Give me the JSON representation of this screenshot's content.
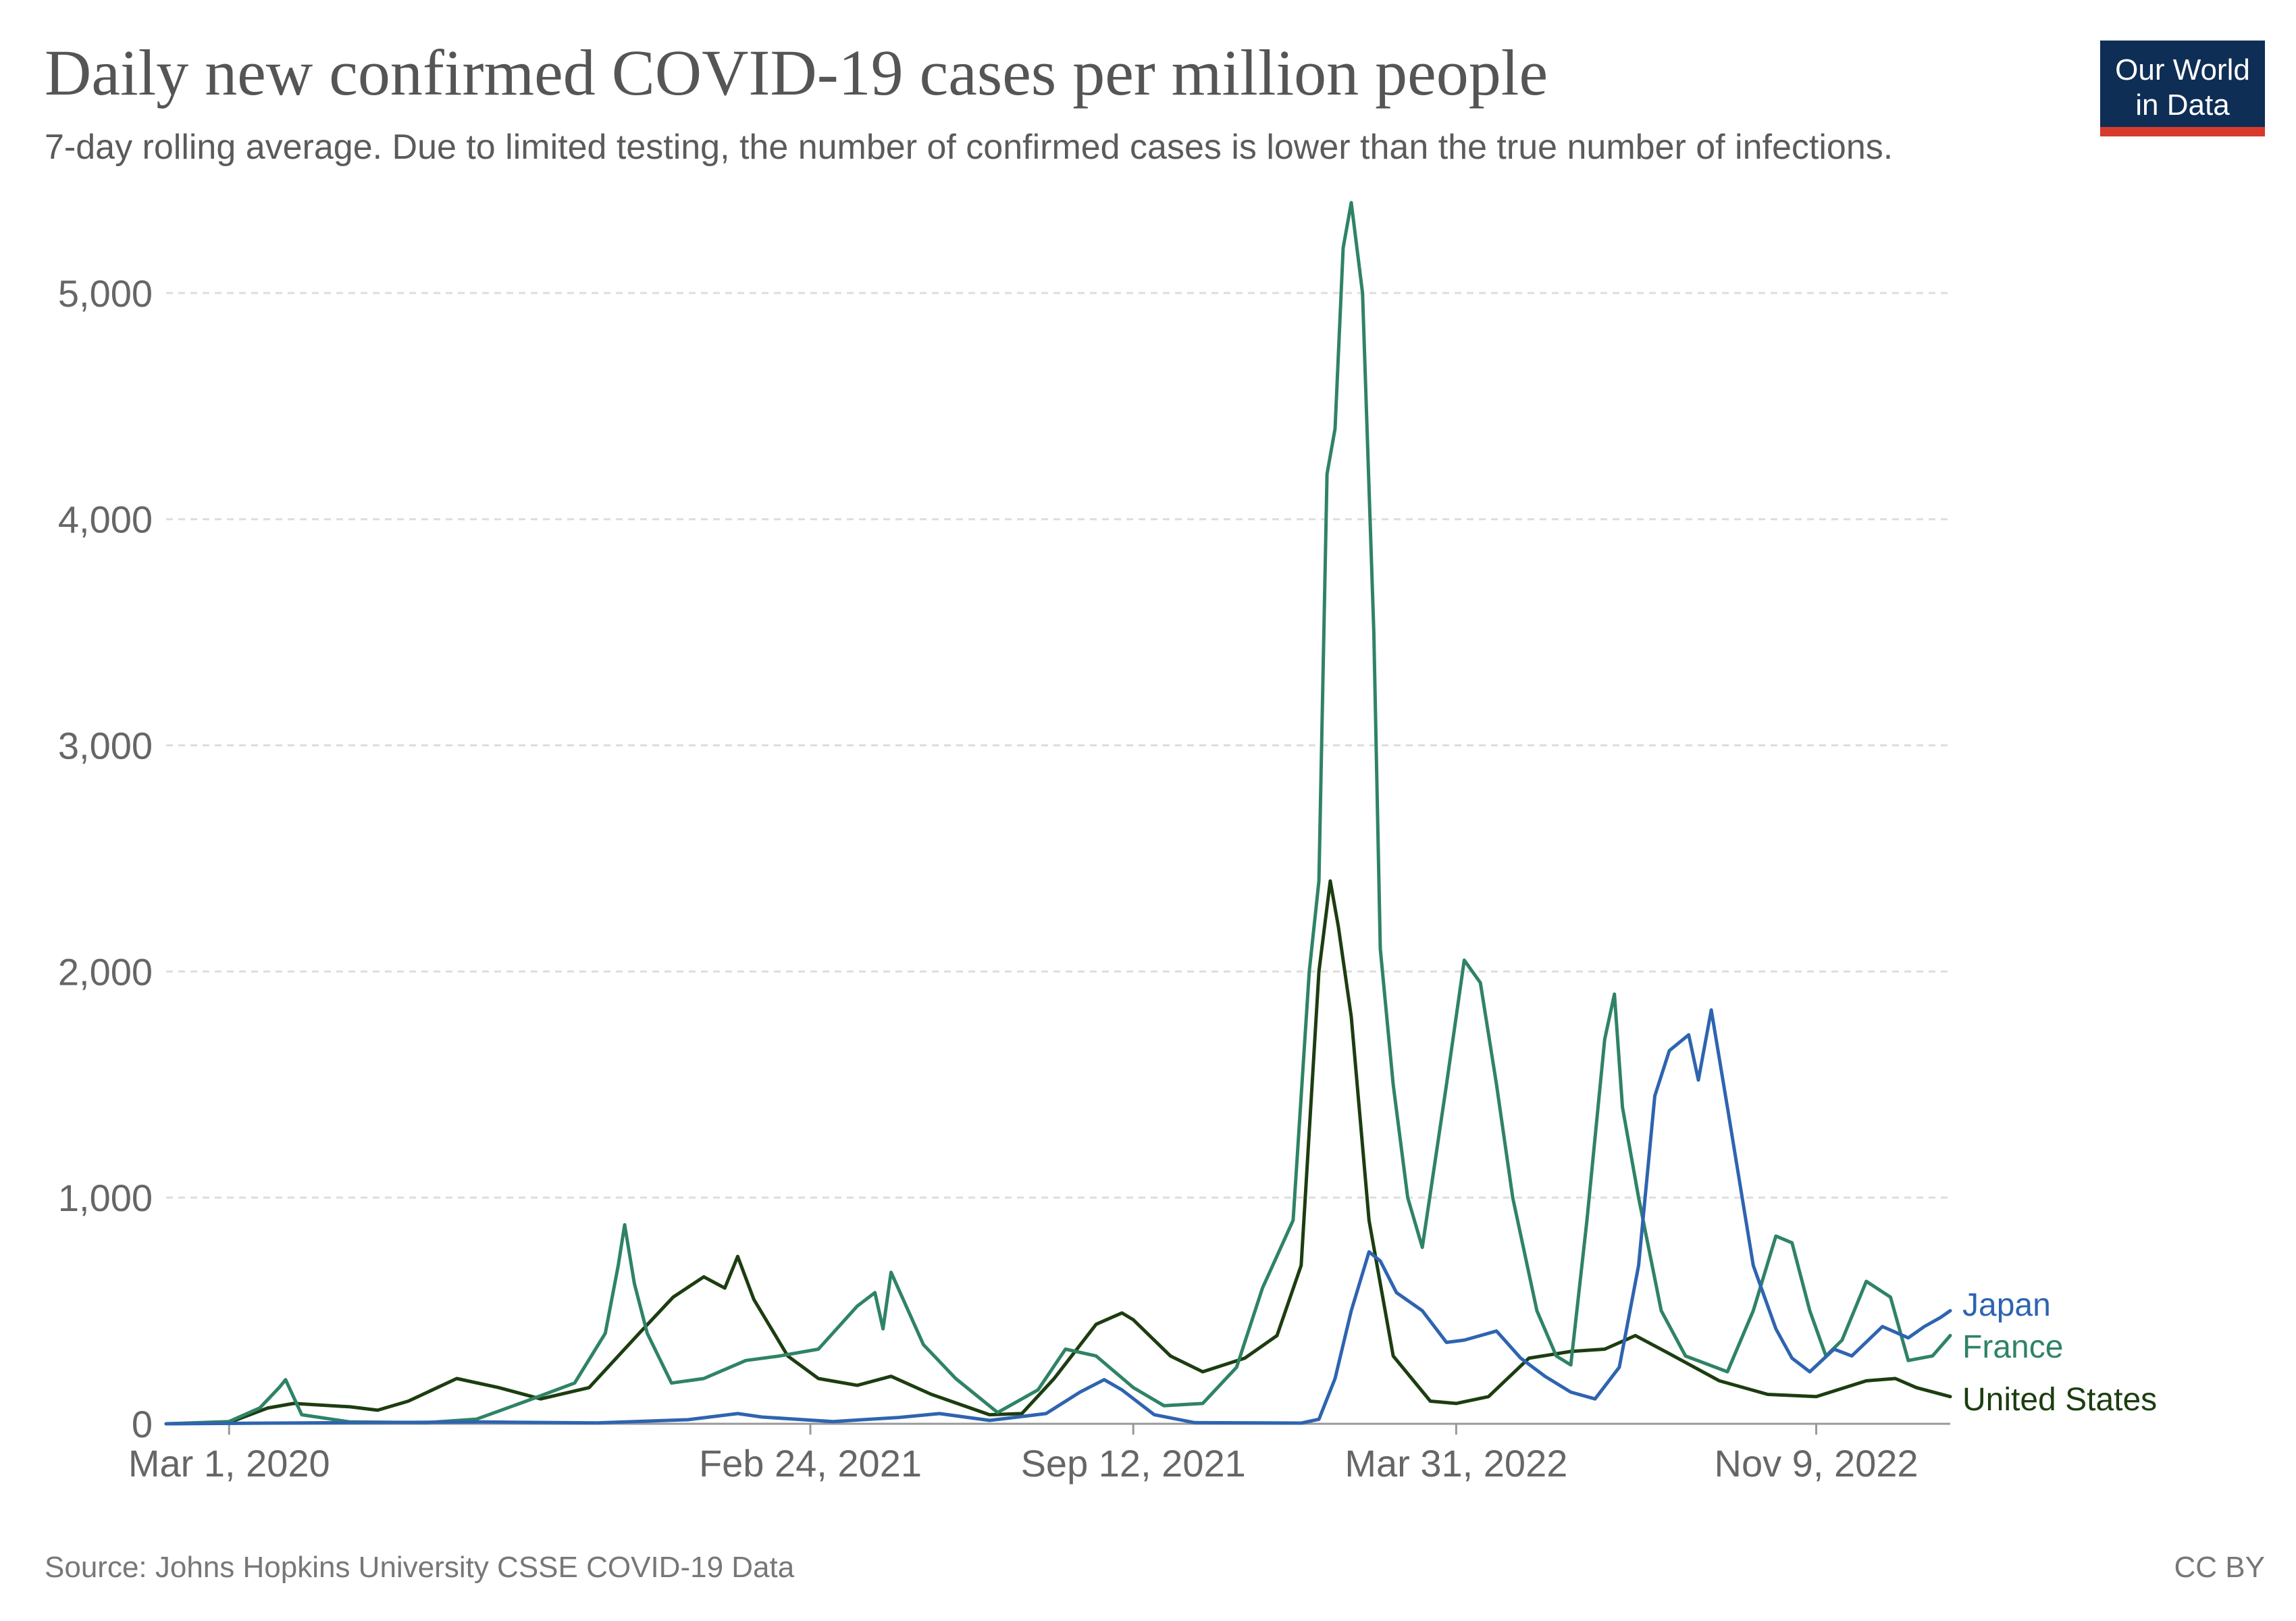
{
  "header": {
    "title": "Daily new confirmed COVID-19 cases per million people",
    "subtitle": "7-day rolling average. Due to limited testing, the number of confirmed cases is lower than the true number of infections."
  },
  "logo": {
    "line1": "Our World",
    "line2": "in Data",
    "bg_color": "#0f2e55",
    "accent_color": "#d73a2c"
  },
  "footer": {
    "source": "Source: Johns Hopkins University CSSE COVID-19 Data",
    "license": "CC BY"
  },
  "chart_data": {
    "type": "line",
    "title": "Daily new confirmed COVID-19 cases per million people",
    "subtitle": "7-day rolling average. Due to limited testing, the number of confirmed cases is lower than the true number of infections.",
    "xlabel": "",
    "ylabel": "",
    "x_range": [
      "2020-01-22",
      "2023-01-31"
    ],
    "ylim": [
      0,
      5400
    ],
    "y_ticks": [
      0,
      1000,
      2000,
      3000,
      4000,
      5000
    ],
    "y_tick_labels": [
      "0",
      "1,000",
      "2,000",
      "3,000",
      "4,000",
      "5,000"
    ],
    "x_ticks": [
      "2020-03-01",
      "2021-02-24",
      "2021-09-12",
      "2022-03-31",
      "2022-11-09"
    ],
    "x_tick_labels": [
      "Mar 1, 2020",
      "Feb 24, 2021",
      "Sep 12, 2021",
      "Mar 31, 2022",
      "Nov 9, 2022"
    ],
    "grid": "horizontal dashed",
    "legend": "right end of lines",
    "series": [
      {
        "name": "Japan",
        "color": "#2e64b0",
        "points": [
          [
            "2020-01-22",
            0
          ],
          [
            "2020-04-15",
            4
          ],
          [
            "2020-08-05",
            8
          ],
          [
            "2020-10-15",
            4
          ],
          [
            "2020-12-10",
            18
          ],
          [
            "2021-01-10",
            45
          ],
          [
            "2021-01-25",
            30
          ],
          [
            "2021-03-10",
            10
          ],
          [
            "2021-04-20",
            28
          ],
          [
            "2021-05-15",
            45
          ],
          [
            "2021-06-15",
            15
          ],
          [
            "2021-07-20",
            45
          ],
          [
            "2021-08-10",
            140
          ],
          [
            "2021-08-25",
            195
          ],
          [
            "2021-09-05",
            150
          ],
          [
            "2021-09-25",
            40
          ],
          [
            "2021-10-20",
            5
          ],
          [
            "2021-12-25",
            3
          ],
          [
            "2022-01-05",
            20
          ],
          [
            "2022-01-15",
            200
          ],
          [
            "2022-01-25",
            500
          ],
          [
            "2022-02-05",
            760
          ],
          [
            "2022-02-12",
            720
          ],
          [
            "2022-02-22",
            580
          ],
          [
            "2022-03-10",
            500
          ],
          [
            "2022-03-25",
            360
          ],
          [
            "2022-04-05",
            370
          ],
          [
            "2022-04-25",
            410
          ],
          [
            "2022-05-10",
            290
          ],
          [
            "2022-05-25",
            210
          ],
          [
            "2022-06-10",
            140
          ],
          [
            "2022-06-25",
            110
          ],
          [
            "2022-07-10",
            250
          ],
          [
            "2022-07-22",
            700
          ],
          [
            "2022-08-01",
            1450
          ],
          [
            "2022-08-10",
            1650
          ],
          [
            "2022-08-22",
            1720
          ],
          [
            "2022-08-28",
            1520
          ],
          [
            "2022-09-05",
            1830
          ],
          [
            "2022-09-15",
            1400
          ],
          [
            "2022-10-01",
            700
          ],
          [
            "2022-10-15",
            420
          ],
          [
            "2022-10-25",
            290
          ],
          [
            "2022-11-05",
            230
          ],
          [
            "2022-11-20",
            330
          ],
          [
            "2022-12-01",
            300
          ],
          [
            "2022-12-20",
            430
          ],
          [
            "2023-01-05",
            380
          ],
          [
            "2023-01-15",
            430
          ],
          [
            "2023-01-25",
            470
          ],
          [
            "2023-01-31",
            500
          ]
        ]
      },
      {
        "name": "France",
        "color": "#2f8365",
        "points": [
          [
            "2020-01-22",
            0
          ],
          [
            "2020-03-01",
            10
          ],
          [
            "2020-03-20",
            70
          ],
          [
            "2020-04-01",
            160
          ],
          [
            "2020-04-05",
            195
          ],
          [
            "2020-04-15",
            40
          ],
          [
            "2020-05-15",
            8
          ],
          [
            "2020-07-01",
            5
          ],
          [
            "2020-08-01",
            20
          ],
          [
            "2020-09-01",
            100
          ],
          [
            "2020-10-01",
            180
          ],
          [
            "2020-10-20",
            400
          ],
          [
            "2020-10-28",
            700
          ],
          [
            "2020-11-01",
            880
          ],
          [
            "2020-11-07",
            620
          ],
          [
            "2020-11-15",
            400
          ],
          [
            "2020-11-30",
            180
          ],
          [
            "2020-12-20",
            200
          ],
          [
            "2021-01-15",
            280
          ],
          [
            "2021-02-05",
            300
          ],
          [
            "2021-03-01",
            330
          ],
          [
            "2021-03-25",
            520
          ],
          [
            "2021-04-05",
            580
          ],
          [
            "2021-04-10",
            420
          ],
          [
            "2021-04-15",
            670
          ],
          [
            "2021-05-05",
            350
          ],
          [
            "2021-05-25",
            200
          ],
          [
            "2021-06-20",
            50
          ],
          [
            "2021-07-15",
            150
          ],
          [
            "2021-08-01",
            330
          ],
          [
            "2021-08-20",
            300
          ],
          [
            "2021-09-12",
            160
          ],
          [
            "2021-10-01",
            80
          ],
          [
            "2021-10-25",
            90
          ],
          [
            "2021-11-15",
            250
          ],
          [
            "2021-12-01",
            600
          ],
          [
            "2021-12-20",
            900
          ],
          [
            "2021-12-30",
            2000
          ],
          [
            "2022-01-05",
            2400
          ],
          [
            "2022-01-10",
            4200
          ],
          [
            "2022-01-15",
            4400
          ],
          [
            "2022-01-20",
            5200
          ],
          [
            "2022-01-25",
            5400
          ],
          [
            "2022-02-01",
            5000
          ],
          [
            "2022-02-08",
            3500
          ],
          [
            "2022-02-12",
            2100
          ],
          [
            "2022-02-20",
            1500
          ],
          [
            "2022-03-01",
            1000
          ],
          [
            "2022-03-10",
            780
          ],
          [
            "2022-03-25",
            1500
          ],
          [
            "2022-04-05",
            2050
          ],
          [
            "2022-04-15",
            1950
          ],
          [
            "2022-04-25",
            1500
          ],
          [
            "2022-05-05",
            1000
          ],
          [
            "2022-05-20",
            500
          ],
          [
            "2022-06-01",
            300
          ],
          [
            "2022-06-10",
            260
          ],
          [
            "2022-06-20",
            900
          ],
          [
            "2022-07-01",
            1700
          ],
          [
            "2022-07-07",
            1900
          ],
          [
            "2022-07-12",
            1400
          ],
          [
            "2022-07-22",
            1000
          ],
          [
            "2022-08-05",
            500
          ],
          [
            "2022-08-20",
            300
          ],
          [
            "2022-09-15",
            230
          ],
          [
            "2022-10-01",
            500
          ],
          [
            "2022-10-15",
            830
          ],
          [
            "2022-10-25",
            800
          ],
          [
            "2022-11-05",
            500
          ],
          [
            "2022-11-15",
            300
          ],
          [
            "2022-11-25",
            370
          ],
          [
            "2022-12-10",
            630
          ],
          [
            "2022-12-25",
            560
          ],
          [
            "2023-01-05",
            280
          ],
          [
            "2023-01-20",
            300
          ],
          [
            "2023-01-31",
            390
          ]
        ]
      },
      {
        "name": "United States",
        "color": "#1c3d10",
        "points": [
          [
            "2020-01-22",
            0
          ],
          [
            "2020-03-01",
            5
          ],
          [
            "2020-03-25",
            70
          ],
          [
            "2020-04-10",
            90
          ],
          [
            "2020-05-15",
            75
          ],
          [
            "2020-06-01",
            60
          ],
          [
            "2020-06-20",
            100
          ],
          [
            "2020-07-20",
            200
          ],
          [
            "2020-08-15",
            160
          ],
          [
            "2020-09-10",
            110
          ],
          [
            "2020-10-10",
            160
          ],
          [
            "2020-11-10",
            400
          ],
          [
            "2020-12-01",
            560
          ],
          [
            "2020-12-20",
            650
          ],
          [
            "2021-01-02",
            600
          ],
          [
            "2021-01-10",
            740
          ],
          [
            "2021-01-20",
            550
          ],
          [
            "2021-02-10",
            300
          ],
          [
            "2021-03-01",
            200
          ],
          [
            "2021-03-25",
            170
          ],
          [
            "2021-04-15",
            210
          ],
          [
            "2021-05-10",
            130
          ],
          [
            "2021-06-15",
            40
          ],
          [
            "2021-07-05",
            45
          ],
          [
            "2021-07-25",
            200
          ],
          [
            "2021-08-20",
            440
          ],
          [
            "2021-09-05",
            490
          ],
          [
            "2021-09-12",
            460
          ],
          [
            "2021-10-05",
            300
          ],
          [
            "2021-10-25",
            230
          ],
          [
            "2021-11-20",
            290
          ],
          [
            "2021-12-10",
            390
          ],
          [
            "2021-12-25",
            700
          ],
          [
            "2022-01-05",
            2000
          ],
          [
            "2022-01-12",
            2400
          ],
          [
            "2022-01-17",
            2200
          ],
          [
            "2022-01-25",
            1800
          ],
          [
            "2022-02-05",
            900
          ],
          [
            "2022-02-20",
            300
          ],
          [
            "2022-03-15",
            100
          ],
          [
            "2022-03-31",
            90
          ],
          [
            "2022-04-20",
            120
          ],
          [
            "2022-05-15",
            290
          ],
          [
            "2022-06-10",
            320
          ],
          [
            "2022-07-01",
            330
          ],
          [
            "2022-07-20",
            390
          ],
          [
            "2022-08-10",
            310
          ],
          [
            "2022-09-10",
            190
          ],
          [
            "2022-10-10",
            130
          ],
          [
            "2022-11-09",
            120
          ],
          [
            "2022-12-10",
            190
          ],
          [
            "2022-12-28",
            200
          ],
          [
            "2023-01-10",
            160
          ],
          [
            "2023-01-31",
            120
          ]
        ]
      }
    ]
  }
}
